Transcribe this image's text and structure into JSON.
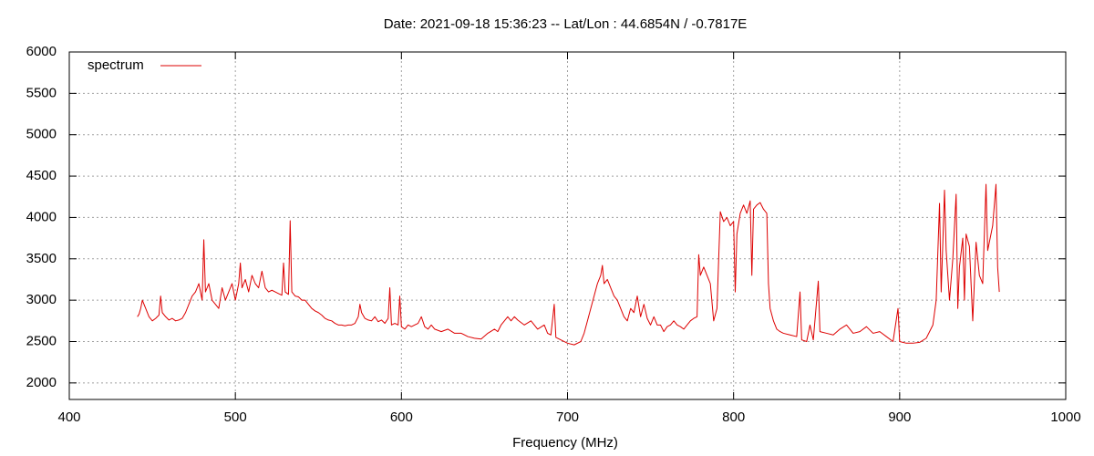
{
  "chart_data": {
    "type": "line",
    "title": "Date: 2021-09-18 15:36:23  --  Lat/Lon : 44.6854N / -0.7817E",
    "x_label": "Frequency (MHz)",
    "xlim": [
      400,
      1000
    ],
    "xticks": [
      400,
      500,
      600,
      700,
      800,
      900,
      1000
    ],
    "ylim": [
      1800,
      6000
    ],
    "yticks": [
      2000,
      2500,
      3000,
      3500,
      4000,
      4500,
      5000,
      5500,
      6000
    ],
    "grid": true,
    "legend": "top-left",
    "x": [
      441,
      442,
      443,
      444,
      446,
      448,
      450,
      452,
      454,
      455,
      456,
      458,
      460,
      462,
      464,
      466,
      468,
      470,
      472,
      474,
      476,
      478,
      480,
      481,
      482,
      484,
      486,
      488,
      490,
      492,
      494,
      496,
      498,
      500,
      502,
      503,
      504,
      506,
      508,
      510,
      512,
      514,
      516,
      518,
      520,
      522,
      524,
      526,
      528,
      529,
      530,
      532,
      533,
      534,
      536,
      538,
      540,
      542,
      544,
      546,
      548,
      550,
      552,
      554,
      556,
      558,
      560,
      562,
      564,
      566,
      568,
      570,
      572,
      574,
      575,
      576,
      578,
      580,
      582,
      584,
      586,
      588,
      590,
      592,
      593,
      594,
      596,
      598,
      599,
      600,
      602,
      604,
      606,
      608,
      610,
      612,
      614,
      616,
      618,
      620,
      624,
      628,
      632,
      636,
      640,
      644,
      648,
      652,
      656,
      658,
      660,
      662,
      664,
      666,
      668,
      670,
      674,
      678,
      682,
      686,
      688,
      690,
      692,
      693,
      696,
      700,
      704,
      708,
      710,
      712,
      714,
      716,
      718,
      720,
      721,
      722,
      724,
      726,
      728,
      730,
      732,
      734,
      736,
      738,
      740,
      742,
      744,
      746,
      748,
      750,
      752,
      754,
      756,
      758,
      760,
      762,
      764,
      766,
      768,
      770,
      772,
      774,
      776,
      778,
      779,
      780,
      782,
      784,
      786,
      788,
      790,
      792,
      794,
      796,
      798,
      800,
      801,
      802,
      804,
      806,
      808,
      810,
      811,
      812,
      814,
      816,
      818,
      820,
      821,
      822,
      824,
      826,
      828,
      830,
      834,
      838,
      840,
      841,
      844,
      846,
      848,
      851,
      852,
      856,
      860,
      864,
      868,
      872,
      876,
      880,
      884,
      888,
      892,
      896,
      899,
      900,
      904,
      908,
      912,
      916,
      920,
      922,
      924,
      925,
      926,
      927,
      928,
      930,
      932,
      934,
      935,
      936,
      938,
      939,
      940,
      942,
      944,
      946,
      948,
      950,
      952,
      953,
      954,
      956,
      958,
      959,
      960
    ],
    "series": [
      {
        "name": "spectrum",
        "color": "#dd0000",
        "values": [
          2800,
          2830,
          2900,
          3000,
          2900,
          2800,
          2750,
          2780,
          2820,
          3050,
          2850,
          2800,
          2760,
          2780,
          2750,
          2760,
          2780,
          2850,
          2950,
          3050,
          3100,
          3200,
          3000,
          3730,
          3100,
          3200,
          3000,
          2950,
          2900,
          3150,
          3000,
          3100,
          3200,
          3000,
          3200,
          3450,
          3150,
          3250,
          3100,
          3300,
          3200,
          3150,
          3350,
          3150,
          3100,
          3120,
          3100,
          3080,
          3060,
          3450,
          3100,
          3070,
          3960,
          3100,
          3050,
          3040,
          3000,
          3000,
          2950,
          2900,
          2870,
          2850,
          2820,
          2780,
          2760,
          2750,
          2720,
          2700,
          2700,
          2690,
          2700,
          2700,
          2720,
          2800,
          2950,
          2850,
          2780,
          2760,
          2750,
          2800,
          2740,
          2760,
          2720,
          2780,
          3150,
          2700,
          2720,
          2700,
          3050,
          2680,
          2650,
          2700,
          2680,
          2700,
          2720,
          2800,
          2680,
          2650,
          2700,
          2650,
          2620,
          2650,
          2600,
          2600,
          2560,
          2540,
          2530,
          2600,
          2650,
          2620,
          2700,
          2750,
          2800,
          2750,
          2800,
          2760,
          2700,
          2750,
          2650,
          2700,
          2600,
          2580,
          2950,
          2550,
          2520,
          2480,
          2460,
          2500,
          2600,
          2750,
          2900,
          3050,
          3200,
          3300,
          3420,
          3200,
          3250,
          3150,
          3050,
          3000,
          2900,
          2800,
          2750,
          2900,
          2850,
          3050,
          2800,
          2950,
          2780,
          2700,
          2800,
          2700,
          2700,
          2620,
          2680,
          2700,
          2750,
          2700,
          2680,
          2650,
          2700,
          2750,
          2780,
          2800,
          3550,
          3300,
          3400,
          3300,
          3200,
          2750,
          2900,
          4070,
          3950,
          4000,
          3900,
          3950,
          3100,
          3800,
          4050,
          4150,
          4050,
          4200,
          3300,
          4100,
          4150,
          4180,
          4100,
          4050,
          3200,
          2900,
          2750,
          2650,
          2620,
          2600,
          2580,
          2560,
          3100,
          2520,
          2500,
          2700,
          2520,
          3230,
          2620,
          2600,
          2580,
          2650,
          2700,
          2600,
          2620,
          2680,
          2600,
          2620,
          2560,
          2500,
          2900,
          2500,
          2480,
          2480,
          2490,
          2540,
          2700,
          3000,
          4170,
          3100,
          3700,
          4330,
          3600,
          3000,
          3500,
          4280,
          2900,
          3400,
          3750,
          3000,
          3800,
          3650,
          2750,
          3700,
          3300,
          3200,
          4400,
          3600,
          3700,
          3900,
          4400,
          3400,
          3100
        ]
      }
    ]
  }
}
